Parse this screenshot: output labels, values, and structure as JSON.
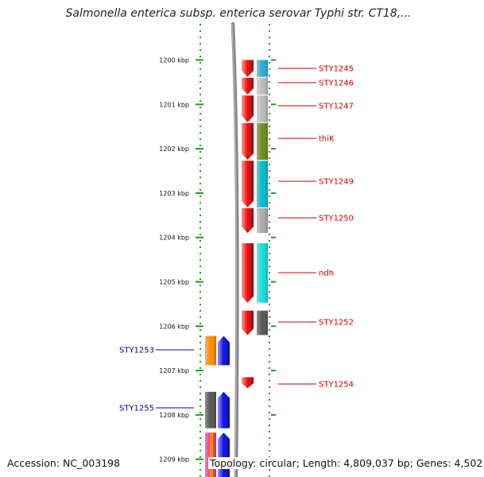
{
  "header": {
    "title": "Salmonella enterica subsp. enterica serovar Typhi str. CT18,..."
  },
  "footer": {
    "accession": "Accession: NC_003198",
    "topology": "Topology: circular; Length: 4,809,037 bp; Genes: 4,502"
  },
  "axis": {
    "unit": "kbp",
    "ticks": [
      {
        "value": 1200,
        "label": "1200 kbp"
      },
      {
        "value": 1201,
        "label": "1201 kbp"
      },
      {
        "value": 1202,
        "label": "1202 kbp"
      },
      {
        "value": 1203,
        "label": "1203 kbp"
      },
      {
        "value": 1204,
        "label": "1204 kbp"
      },
      {
        "value": 1205,
        "label": "1205 kbp"
      },
      {
        "value": 1206,
        "label": "1206 kbp"
      },
      {
        "value": 1207,
        "label": "1207 kbp"
      },
      {
        "value": 1208,
        "label": "1208 kbp"
      },
      {
        "value": 1209,
        "label": "1209 kbp"
      }
    ]
  },
  "colors": {
    "forward_label": "#cc0000",
    "reverse_label": "#0000aa",
    "forward_gene": "#ee1111",
    "reverse_gene": "#1111ee",
    "backbone": "#888888",
    "dotted_track": "#229922"
  },
  "forward_genes": [
    {
      "name": "STY1245",
      "start": 1200.0,
      "end": 1200.38,
      "cog_color": "#29a9d6"
    },
    {
      "name": "STY1246",
      "start": 1200.4,
      "end": 1200.78,
      "cog_color": "#bbbbbb"
    },
    {
      "name": "STY1247",
      "start": 1200.8,
      "end": 1201.4,
      "cog_color": "#bbbbbb"
    },
    {
      "name": "thiK",
      "start": 1201.42,
      "end": 1202.25,
      "cog_color": "#6b8a1f"
    },
    {
      "name": "STY1249",
      "start": 1202.27,
      "end": 1203.32,
      "cog_color": "#00bbcc"
    },
    {
      "name": "STY1250",
      "start": 1203.34,
      "end": 1203.9,
      "cog_color": "#aaaaaa"
    },
    {
      "name": "ndh",
      "start": 1204.13,
      "end": 1205.47,
      "cog_color": "#11dddd"
    },
    {
      "name": "STY1252",
      "start": 1205.65,
      "end": 1206.2,
      "cog_color": "#555555"
    },
    {
      "name": "STY1254",
      "start": 1207.15,
      "end": 1207.4,
      "cog_color": ""
    }
  ],
  "reverse_genes": [
    {
      "name": "STY1253",
      "start": 1206.22,
      "end": 1206.88,
      "cog_color": "#ff8800"
    },
    {
      "name": "STY1255",
      "start": 1207.48,
      "end": 1208.3,
      "cog_color": "#555555"
    },
    {
      "name": "",
      "start": 1208.4,
      "end": 1209.4,
      "cog_color": "#ee3399"
    }
  ]
}
